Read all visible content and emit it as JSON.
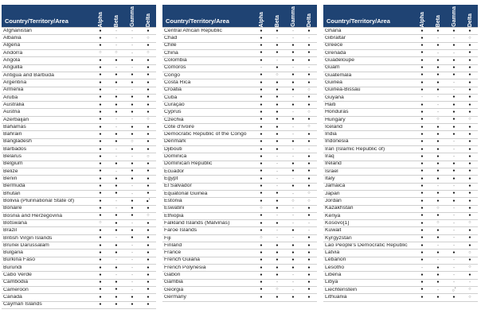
{
  "first_column_header": "Country/Territory/Area",
  "columns": [
    "Alpha",
    "Beta",
    "Gamma",
    "Delta"
  ],
  "symbols": {
    "dot": "●",
    "dash": "-",
    "circle": "○",
    "footnote": "*"
  },
  "colors": {
    "header_bg": "#1F4373",
    "header_text": "#FFFFFF",
    "dot": "#151515",
    "dash": "#9B9B9B",
    "circle": "#757575",
    "row_border": "#CFCFCF"
  },
  "tables": [
    {
      "rows": [
        {
          "name": "Afghanistan",
          "marks": [
            "dot",
            "dash",
            "dash",
            "dot"
          ]
        },
        {
          "name": "Albania",
          "marks": [
            "dot",
            "dash",
            "dash",
            "circle"
          ]
        },
        {
          "name": "Algeria",
          "marks": [
            "dot",
            "dash",
            "dash",
            "dot"
          ]
        },
        {
          "name": "Andorra",
          "marks": [
            "circle",
            "circle",
            "dash",
            "circle"
          ]
        },
        {
          "name": "Angola",
          "marks": [
            "dot",
            "dot",
            "dot",
            "dot"
          ]
        },
        {
          "name": "Anguilla",
          "marks": [
            "dot",
            "dash",
            "dash",
            "dot"
          ]
        },
        {
          "name": "Antigua and Barbuda",
          "marks": [
            "dot",
            "dot",
            "dot",
            "dot"
          ]
        },
        {
          "name": "Argentina",
          "marks": [
            "dot",
            "dot",
            "dot",
            "dot"
          ]
        },
        {
          "name": "Armenia",
          "marks": [
            "dot",
            "dash",
            "dash",
            "dot"
          ]
        },
        {
          "name": "Aruba",
          "marks": [
            "dot",
            "dot",
            "dot",
            "dot"
          ]
        },
        {
          "name": "Australia",
          "marks": [
            "dot",
            "dot",
            "dot",
            "dot"
          ]
        },
        {
          "name": "Austria",
          "marks": [
            "dot",
            "dot",
            "dot",
            "dot"
          ]
        },
        {
          "name": "Azerbaijan",
          "marks": [
            "dot",
            "dash",
            "dash",
            "circle"
          ]
        },
        {
          "name": "Bahamas",
          "marks": [
            "dot",
            "dash",
            "dot",
            "dot"
          ]
        },
        {
          "name": "Bahrain",
          "marks": [
            "dot",
            "dot",
            "dot",
            "dot"
          ]
        },
        {
          "name": "Bangladesh",
          "marks": [
            "dot",
            "dot",
            "circle",
            "dot"
          ]
        },
        {
          "name": "Barbados",
          "marks": [
            "dot",
            "dash",
            "dot",
            "dot"
          ]
        },
        {
          "name": "Belarus",
          "marks": [
            "dot",
            "dash",
            "dash",
            "circle"
          ]
        },
        {
          "name": "Belgium",
          "marks": [
            "dot",
            "dot",
            "dot",
            "dot"
          ]
        },
        {
          "name": "Belize",
          "marks": [
            "dot",
            "dash",
            "dot",
            "dot"
          ]
        },
        {
          "name": "Benin",
          "marks": [
            "dot",
            "dot",
            "dot",
            "dot"
          ]
        },
        {
          "name": "Bermuda",
          "marks": [
            "dot",
            "dot",
            "dash",
            "dot"
          ]
        },
        {
          "name": "Bhutan",
          "marks": [
            "dot",
            "dot",
            "dash",
            "dot"
          ]
        },
        {
          "name": "Bolivia (Plurinational State of)",
          "marks": [
            "dot",
            "dash",
            "dot",
            "dot*"
          ]
        },
        {
          "name": "Bonaire",
          "marks": [
            "dot",
            "dash",
            "dot",
            "dot"
          ]
        },
        {
          "name": "Bosnia and Herzegovina",
          "marks": [
            "dot",
            "dot",
            "dot",
            "circle"
          ]
        },
        {
          "name": "Botswana",
          "marks": [
            "circle",
            "dot",
            "dash",
            "dot"
          ]
        },
        {
          "name": "Brazil",
          "marks": [
            "dot",
            "dot",
            "dot",
            "dot"
          ]
        },
        {
          "name": "British Virgin Islands",
          "marks": [
            "dot",
            "dash",
            "dot",
            "dot"
          ]
        },
        {
          "name": "Brunei Darussalam",
          "marks": [
            "dot",
            "dot",
            "dash",
            "dot"
          ]
        },
        {
          "name": "Bulgaria",
          "marks": [
            "dot",
            "dot",
            "dash",
            "dot"
          ]
        },
        {
          "name": "Burkina Faso",
          "marks": [
            "dot",
            "dash",
            "dash",
            "dot"
          ]
        },
        {
          "name": "Burundi",
          "marks": [
            "dot",
            "dot",
            "dash",
            "dot"
          ]
        },
        {
          "name": "Cabo Verde",
          "marks": [
            "dot",
            "dash",
            "dash",
            "dot"
          ]
        },
        {
          "name": "Cambodia",
          "marks": [
            "dot",
            "dot",
            "dash",
            "dot"
          ]
        },
        {
          "name": "Cameroon",
          "marks": [
            "dot",
            "dot",
            "dash",
            "dot"
          ]
        },
        {
          "name": "Canada",
          "marks": [
            "dot",
            "dot",
            "dot",
            "dot"
          ]
        },
        {
          "name": "Cayman Islands",
          "marks": [
            "dot",
            "dot",
            "dot",
            "dot"
          ]
        }
      ]
    },
    {
      "rows": [
        {
          "name": "Central African Republic",
          "marks": [
            "dot",
            "dot",
            "dash",
            "dot"
          ]
        },
        {
          "name": "Chad",
          "marks": [
            "dot",
            "dash",
            "dash",
            "dash"
          ]
        },
        {
          "name": "Chile",
          "marks": [
            "dot",
            "dot",
            "dot",
            "dot"
          ]
        },
        {
          "name": "China",
          "marks": [
            "dot",
            "dot",
            "dot",
            "dot"
          ]
        },
        {
          "name": "Colombia",
          "marks": [
            "dot",
            "dash",
            "dot",
            "dot"
          ]
        },
        {
          "name": "Comoros",
          "marks": [
            "dash",
            "dot",
            "dash",
            "dash"
          ]
        },
        {
          "name": "Congo",
          "marks": [
            "dot",
            "circle",
            "dot",
            "dot"
          ]
        },
        {
          "name": "Costa Rica",
          "marks": [
            "dot",
            "dot",
            "dot",
            "dot"
          ]
        },
        {
          "name": "Croatia",
          "marks": [
            "dot",
            "dot",
            "dot",
            "circle"
          ]
        },
        {
          "name": "Cuba",
          "marks": [
            "dot",
            "dot",
            "dash",
            "dot"
          ]
        },
        {
          "name": "Curaçao",
          "marks": [
            "dot",
            "dot",
            "dot",
            "dot"
          ]
        },
        {
          "name": "Cyprus",
          "marks": [
            "dot",
            "dot",
            "dash",
            "circle"
          ]
        },
        {
          "name": "Czechia",
          "marks": [
            "dot",
            "dot",
            "dot",
            "dot"
          ]
        },
        {
          "name": "Côte d'Ivoire",
          "marks": [
            "dot",
            "dot",
            "dash",
            "circle"
          ]
        },
        {
          "name": "Democratic Republic of the Congo",
          "marks": [
            "dot",
            "dot",
            "dash",
            "dot"
          ]
        },
        {
          "name": "Denmark",
          "marks": [
            "dot",
            "dot",
            "dot",
            "dot"
          ]
        },
        {
          "name": "Djibouti",
          "marks": [
            "dot",
            "dot",
            "dash",
            "dash"
          ]
        },
        {
          "name": "Dominica",
          "marks": [
            "dot",
            "dash",
            "dash",
            "dot"
          ]
        },
        {
          "name": "Dominican Republic",
          "marks": [
            "dot",
            "dash",
            "dot",
            "dot"
          ]
        },
        {
          "name": "Ecuador",
          "marks": [
            "dot",
            "dash",
            "dot",
            "dot"
          ]
        },
        {
          "name": "Egypt",
          "marks": [
            "dot",
            "dash",
            "dash",
            "dot"
          ]
        },
        {
          "name": "El Salvador",
          "marks": [
            "dot",
            "dash",
            "dot",
            "dot"
          ]
        },
        {
          "name": "Equatorial Guinea",
          "marks": [
            "dot",
            "dot",
            "dash",
            "circle"
          ]
        },
        {
          "name": "Estonia",
          "marks": [
            "dot",
            "dot",
            "circle",
            "circle"
          ]
        },
        {
          "name": "Eswatini",
          "marks": [
            "circle",
            "dot",
            "dash",
            "dot"
          ]
        },
        {
          "name": "Ethiopia",
          "marks": [
            "dot",
            "dash",
            "dash",
            "dot"
          ]
        },
        {
          "name": "Falkland Islands (Malvinas)",
          "marks": [
            "dot",
            "dot",
            "dash",
            "dash"
          ]
        },
        {
          "name": "Faroe Islands",
          "marks": [
            "dot",
            "dash",
            "dot",
            "dash"
          ]
        },
        {
          "name": "Fiji",
          "marks": [
            "circle",
            "dash",
            "dash",
            "dot"
          ]
        },
        {
          "name": "Finland",
          "marks": [
            "dot",
            "dot",
            "dot",
            "dot"
          ]
        },
        {
          "name": "France",
          "marks": [
            "dot",
            "dot",
            "dot",
            "dot"
          ]
        },
        {
          "name": "French Guiana",
          "marks": [
            "dot",
            "dot",
            "dot",
            "dot"
          ]
        },
        {
          "name": "French Polynesia",
          "marks": [
            "dot",
            "dot",
            "dot",
            "dot"
          ]
        },
        {
          "name": "Gabon",
          "marks": [
            "dot",
            "dot",
            "dash",
            "dot"
          ]
        },
        {
          "name": "Gambia",
          "marks": [
            "dot",
            "dash",
            "dash",
            "dot"
          ]
        },
        {
          "name": "Georgia",
          "marks": [
            "dot",
            "circle",
            "dash",
            "dot"
          ]
        },
        {
          "name": "Germany",
          "marks": [
            "dot",
            "dot",
            "dot",
            "dot"
          ]
        }
      ]
    },
    {
      "rows": [
        {
          "name": "Ghana",
          "marks": [
            "dot",
            "dot",
            "dot",
            "dot"
          ]
        },
        {
          "name": "Gibraltar",
          "marks": [
            "dot",
            "dash",
            "dash",
            "circle"
          ]
        },
        {
          "name": "Greece",
          "marks": [
            "dot",
            "dot",
            "dot",
            "dot"
          ]
        },
        {
          "name": "Grenada",
          "marks": [
            "dot",
            "dash",
            "dash",
            "dot"
          ]
        },
        {
          "name": "Guadeloupe",
          "marks": [
            "dot",
            "dot",
            "dot",
            "dot"
          ]
        },
        {
          "name": "Guam",
          "marks": [
            "dot",
            "dot",
            "dot",
            "dot"
          ]
        },
        {
          "name": "Guatemala",
          "marks": [
            "dot",
            "dot",
            "dot",
            "dot"
          ]
        },
        {
          "name": "Guinea",
          "marks": [
            "dot",
            "dot",
            "dash",
            "dot"
          ]
        },
        {
          "name": "Guinea-Bissau",
          "marks": [
            "dot",
            "dot",
            "dash",
            "dot"
          ]
        },
        {
          "name": "Guyana",
          "marks": [
            "dash",
            "dash",
            "dot",
            "dot"
          ]
        },
        {
          "name": "Haiti",
          "marks": [
            "dot",
            "dash",
            "dot",
            "dot"
          ]
        },
        {
          "name": "Honduras",
          "marks": [
            "dot",
            "dash",
            "dot",
            "dot"
          ]
        },
        {
          "name": "Hungary",
          "marks": [
            "dot",
            "circle",
            "dot",
            "circle"
          ]
        },
        {
          "name": "Iceland",
          "marks": [
            "dot",
            "dot",
            "dot",
            "dot"
          ]
        },
        {
          "name": "India",
          "marks": [
            "dot",
            "dot",
            "dot",
            "dot"
          ]
        },
        {
          "name": "Indonesia",
          "marks": [
            "dot",
            "dot",
            "dash",
            "dot"
          ]
        },
        {
          "name": "Iran (Islamic Republic of)",
          "marks": [
            "dot",
            "dot",
            "dash",
            "dot"
          ]
        },
        {
          "name": "Iraq",
          "marks": [
            "dot",
            "dot",
            "dash",
            "dot"
          ]
        },
        {
          "name": "Ireland",
          "marks": [
            "dot",
            "dot",
            "dot",
            "dot"
          ]
        },
        {
          "name": "Israel",
          "marks": [
            "dot",
            "dot",
            "dot",
            "dot"
          ]
        },
        {
          "name": "Italy",
          "marks": [
            "dot",
            "dot",
            "dot",
            "dot"
          ]
        },
        {
          "name": "Jamaica",
          "marks": [
            "dot",
            "dash",
            "dash",
            "dot"
          ]
        },
        {
          "name": "Japan",
          "marks": [
            "dot",
            "dot",
            "dot",
            "dot"
          ]
        },
        {
          "name": "Jordan",
          "marks": [
            "dot",
            "dot",
            "dot",
            "dot"
          ]
        },
        {
          "name": "Kazakhstan",
          "marks": [
            "dot",
            "circle",
            "dash",
            "dot"
          ]
        },
        {
          "name": "Kenya",
          "marks": [
            "dot",
            "dot",
            "dash",
            "dot"
          ]
        },
        {
          "name": "Kosovo[1]",
          "marks": [
            "dot",
            "circle",
            "dash",
            "circle"
          ]
        },
        {
          "name": "Kuwait",
          "marks": [
            "dot",
            "dot",
            "dash",
            "dot"
          ]
        },
        {
          "name": "Kyrgyzstan",
          "marks": [
            "dot",
            "dot",
            "dash",
            "dot"
          ]
        },
        {
          "name": "Lao People's Democratic Republic",
          "marks": [
            "dot",
            "dash",
            "dash",
            "dot"
          ]
        },
        {
          "name": "Latvia",
          "marks": [
            "dot",
            "dot",
            "dot",
            "circle"
          ]
        },
        {
          "name": "Lebanon",
          "marks": [
            "dot",
            "dash",
            "dash",
            "dot"
          ]
        },
        {
          "name": "Lesotho",
          "marks": [
            "dash",
            "dot",
            "dash",
            "circle"
          ]
        },
        {
          "name": "Liberia",
          "marks": [
            "dot",
            "dot",
            "dash",
            "dot"
          ]
        },
        {
          "name": "Libya",
          "marks": [
            "dot",
            "dot",
            "dash",
            "dash"
          ]
        },
        {
          "name": "Liechtenstein",
          "marks": [
            "dot",
            "dash",
            "circle*",
            "circle"
          ]
        },
        {
          "name": "Lithuania",
          "marks": [
            "dot",
            "dot",
            "dot",
            "circle"
          ]
        }
      ]
    }
  ]
}
